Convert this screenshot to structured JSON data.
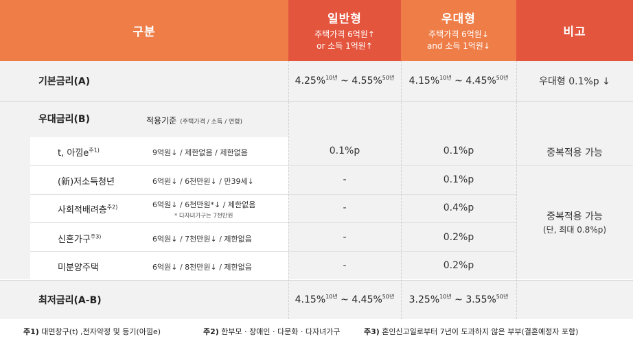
{
  "header": {
    "gubun": "구분",
    "general": {
      "title": "일반형",
      "line1": "주택가격 6억원↑",
      "line2": "or 소득 1억원↑"
    },
    "preferential": {
      "title": "우대형",
      "line1": "주택가격 6억원↓",
      "line2": "and 소득 1억원↓"
    },
    "note": "비고"
  },
  "base_rate": {
    "label": "기본금리(A)",
    "general": {
      "from": "4.25%",
      "from_sup": "10년",
      "sep": " ~ ",
      "to": "4.55%",
      "to_sup": "50년"
    },
    "preferential": {
      "from": "4.15%",
      "from_sup": "10년",
      "sep": " ~ ",
      "to": "4.45%",
      "to_sup": "50년"
    },
    "note": "우대형 0.1%p ↓"
  },
  "pref_rate": {
    "label": "우대금리(B)",
    "criteria_title": "적용기준",
    "criteria_sub": "(주택가격 / 소득 / 연령)",
    "note_dup": "중복적용 가능",
    "note_dup2": "중복적용 가능",
    "note_dup2_sub": "(단, 최대 0.8%p)",
    "rows": [
      {
        "name": "t, 아낌e",
        "sup": "주1)",
        "criteria": "9억원↓ / 제한없음 / 제한없음",
        "criteria_note": "",
        "general": "0.1%p",
        "preferential": "0.1%p"
      },
      {
        "name": "(新)저소득청년",
        "sup": "",
        "criteria": "6억원↓ / 6천만원↓ / 만39세↓",
        "criteria_note": "",
        "general": "-",
        "preferential": "0.1%p"
      },
      {
        "name": "사회적배려층",
        "sup": "주2)",
        "criteria": "6억원↓ / 6천만원*↓ / 제한없음",
        "criteria_note": "* 다자녀가구는 7천만원",
        "general": "-",
        "preferential": "0.4%p"
      },
      {
        "name": "신혼가구",
        "sup": "주3)",
        "criteria": "6억원↓ / 7천만원↓ / 제한없음",
        "criteria_note": "",
        "general": "-",
        "preferential": "0.2%p"
      },
      {
        "name": "미분양주택",
        "sup": "",
        "criteria": "6억원↓ / 8천만원↓ / 제한없음",
        "criteria_note": "",
        "general": "-",
        "preferential": "0.2%p"
      }
    ]
  },
  "min_rate": {
    "label": "최저금리(A-B)",
    "general": {
      "from": "4.15%",
      "from_sup": "10년",
      "sep": " ~ ",
      "to": "4.45%",
      "to_sup": "50년"
    },
    "preferential": {
      "from": "3.25%",
      "from_sup": "10년",
      "sep": " ~ ",
      "to": "3.55%",
      "to_sup": "50년"
    }
  },
  "footnotes": {
    "n1_tag": "주1)",
    "n1_text": " 대면창구(t) ,전자약정 및 등기(아낌e)",
    "n2_tag": "주2)",
    "n2_text": " 한부모 · 장애인 · 다문화 · 다자녀가구",
    "n3_tag": "주3)",
    "n3_text": " 혼인신고일로부터 7년이 도과하지 않은 부부(결혼예정자 포함)"
  }
}
